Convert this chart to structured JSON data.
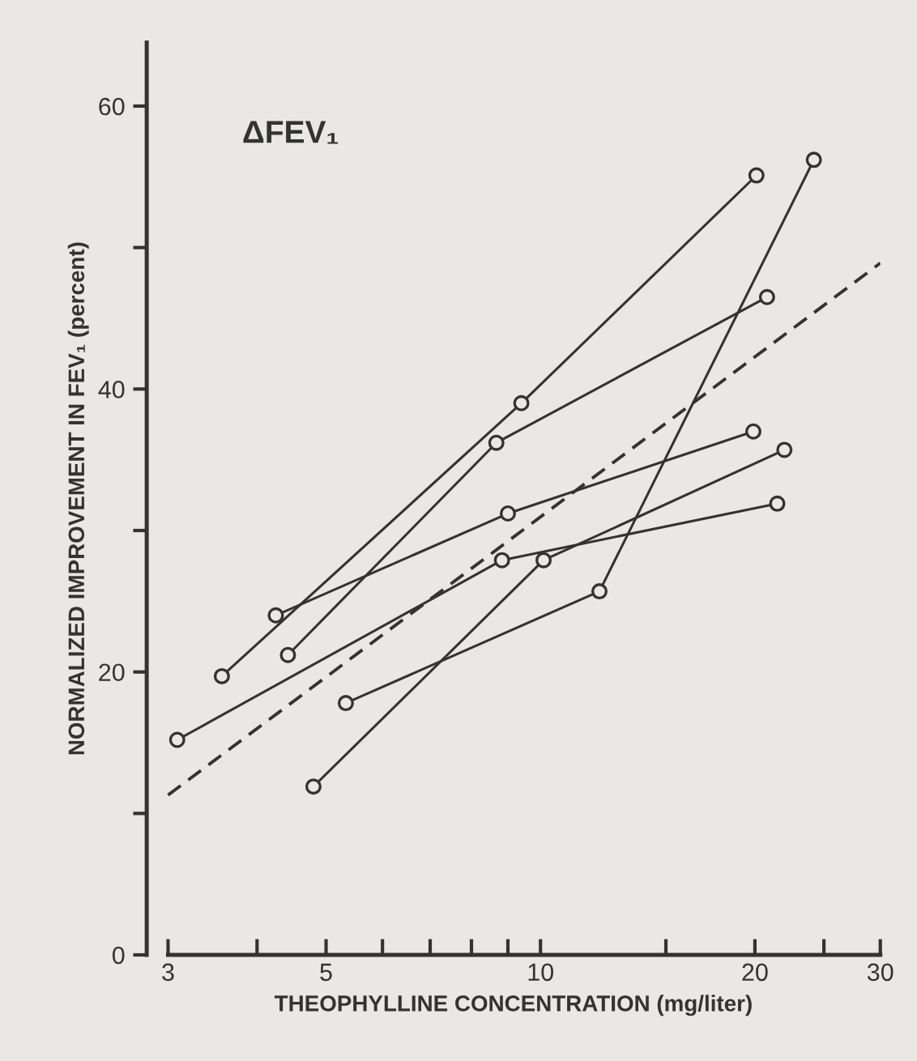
{
  "chart_data": {
    "type": "line",
    "xlabel": "THEOPHYLLINE CONCENTRATION (mg/liter)",
    "ylabel": "NORMALIZED IMPROVEMENT IN FEV₁ (percent)",
    "annotations": [
      "ΔFEV₁"
    ],
    "log": "x",
    "marker": "circle",
    "grid": false,
    "xlim": [
      2.8,
      30
    ],
    "ylim": [
      0,
      64.5
    ],
    "xticks": [
      3,
      {
        "value": 4,
        "label": null
      },
      5,
      {
        "value": 6,
        "label": null
      },
      {
        "value": 7,
        "label": null
      },
      {
        "value": 8,
        "label": null
      },
      {
        "value": 9,
        "label": null
      },
      10,
      {
        "value": 15,
        "label": null
      },
      20,
      {
        "value": 25,
        "label": null
      },
      30
    ],
    "yticks": [
      0,
      {
        "value": 10,
        "label": null
      },
      20,
      {
        "value": 30,
        "label": null
      },
      40,
      {
        "value": 50,
        "label": null
      },
      60
    ],
    "series": [
      {
        "color": "#333333",
        "x": [
          3.57,
          9.4,
          20.1
        ],
        "values": [
          19.7,
          39.0,
          55.1
        ]
      },
      {
        "color": "#333333",
        "x": [
          4.42,
          8.67,
          20.8
        ],
        "values": [
          21.2,
          36.2,
          46.5
        ]
      },
      {
        "color": "#333333",
        "x": [
          4.25,
          9.0,
          19.9
        ],
        "values": [
          24.0,
          31.2,
          37.0
        ]
      },
      {
        "color": "#333333",
        "x": [
          3.09,
          8.83,
          21.5
        ],
        "values": [
          15.2,
          27.9,
          31.9
        ]
      },
      {
        "color": "#333333",
        "x": [
          5.33,
          12.1,
          24.2
        ],
        "values": [
          17.8,
          25.7,
          56.2
        ]
      },
      {
        "color": "#333333",
        "x": [
          4.8,
          10.1,
          22.0
        ],
        "values": [
          11.9,
          27.9,
          35.7
        ]
      },
      {
        "color": "#333333",
        "x": [
          3,
          30
        ],
        "values": [
          11.3,
          48.9
        ],
        "marker": "none",
        "line_style": "dashed"
      }
    ]
  }
}
